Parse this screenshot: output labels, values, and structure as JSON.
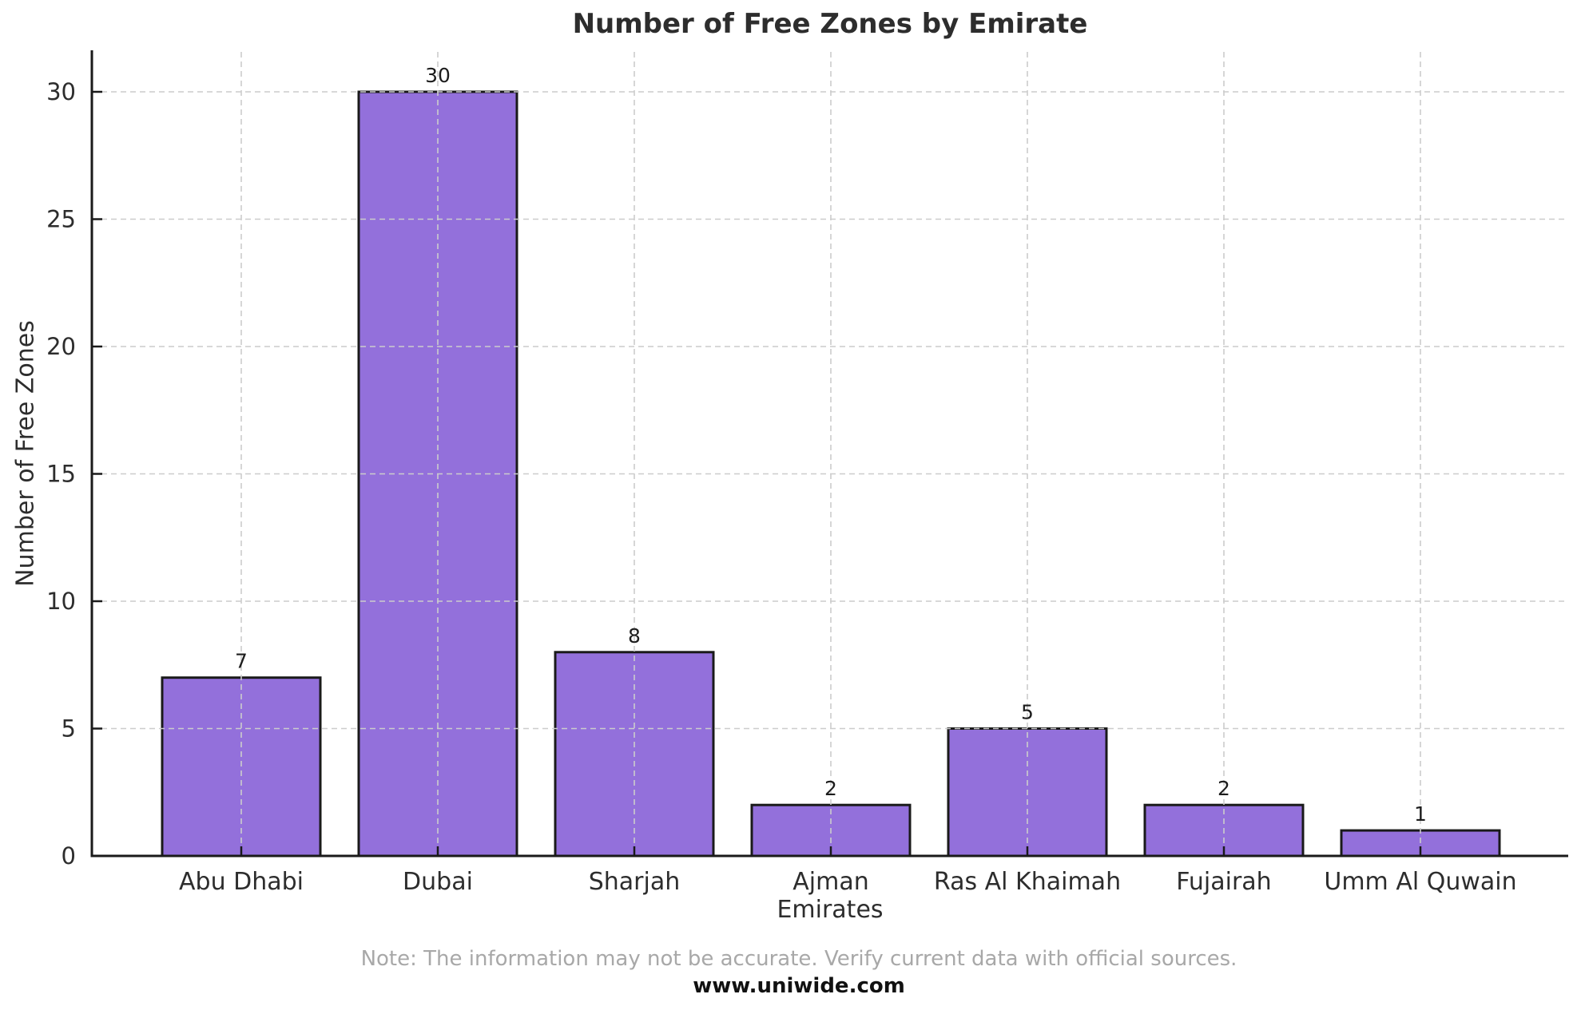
{
  "chart_data": {
    "type": "bar",
    "title": "Number of Free Zones by Emirate",
    "xlabel": "Emirates",
    "ylabel": "Number of Free Zones",
    "categories": [
      "Abu Dhabi",
      "Dubai",
      "Sharjah",
      "Ajman",
      "Ras Al Khaimah",
      "Fujairah",
      "Umm Al Quwain"
    ],
    "values": [
      7,
      30,
      8,
      2,
      5,
      2,
      1
    ],
    "ylim": [
      0,
      30
    ],
    "yticks": [
      0,
      5,
      10,
      15,
      20,
      25,
      30
    ],
    "grid": true,
    "grid_style": "dashed",
    "legend": "none",
    "bar_color": "#9370DB",
    "bar_edge_color": "#1a1a1a",
    "grid_color": "#cccccc",
    "axis_color": "#1a1a1a",
    "text_color": "#2d2d2d"
  },
  "footer": {
    "note": "Note: The information may not be accurate. Verify current data with official sources.",
    "website": "www.uniwide.com"
  }
}
